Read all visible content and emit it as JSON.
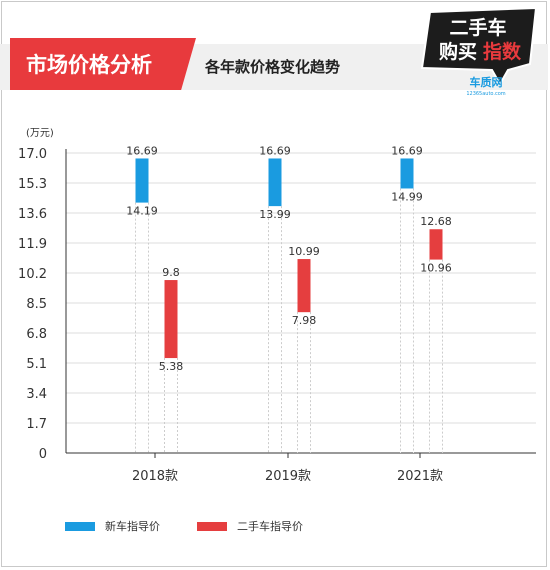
{
  "header": {
    "tag_label": "市场价格分析",
    "subtitle": "各年款价格变化趋势"
  },
  "logo": {
    "text_top": "二手车",
    "text_bottom_left": "购买",
    "text_bottom_right": "指数",
    "brand": "车质网",
    "brand_url": "12365auto.com"
  },
  "colors": {
    "new_car": "#1a9be0",
    "used_car": "#e53e3f",
    "tag_bg": "#e83a3d",
    "axis": "#333333",
    "grid": "#dddddd"
  },
  "chart_data": {
    "type": "bar",
    "unit_label": "(万元)",
    "categories": [
      "2018款",
      "2019款",
      "2021款"
    ],
    "ylim": [
      0,
      17.0
    ],
    "yticks": [
      "17.0",
      "15.3",
      "13.6",
      "11.9",
      "10.2",
      "8.5",
      "6.8",
      "5.1",
      "3.4",
      "1.7",
      "0"
    ],
    "series": [
      {
        "name": "新车指导价",
        "ranges": [
          {
            "low": 14.19,
            "high": 16.69,
            "low_label": "14.19",
            "high_label": "16.69"
          },
          {
            "low": 13.99,
            "high": 16.69,
            "low_label": "13.99",
            "high_label": "16.69"
          },
          {
            "low": 14.99,
            "high": 16.69,
            "low_label": "14.99",
            "high_label": "16.69"
          }
        ]
      },
      {
        "name": "二手车指导价",
        "ranges": [
          {
            "low": 5.38,
            "high": 9.8,
            "low_label": "5.38",
            "high_label": "9.8"
          },
          {
            "low": 7.98,
            "high": 10.99,
            "low_label": "7.98",
            "high_label": "10.99"
          },
          {
            "low": 10.96,
            "high": 12.68,
            "low_label": "10.96",
            "high_label": "12.68"
          }
        ]
      }
    ],
    "legend_position": "bottom-left"
  }
}
